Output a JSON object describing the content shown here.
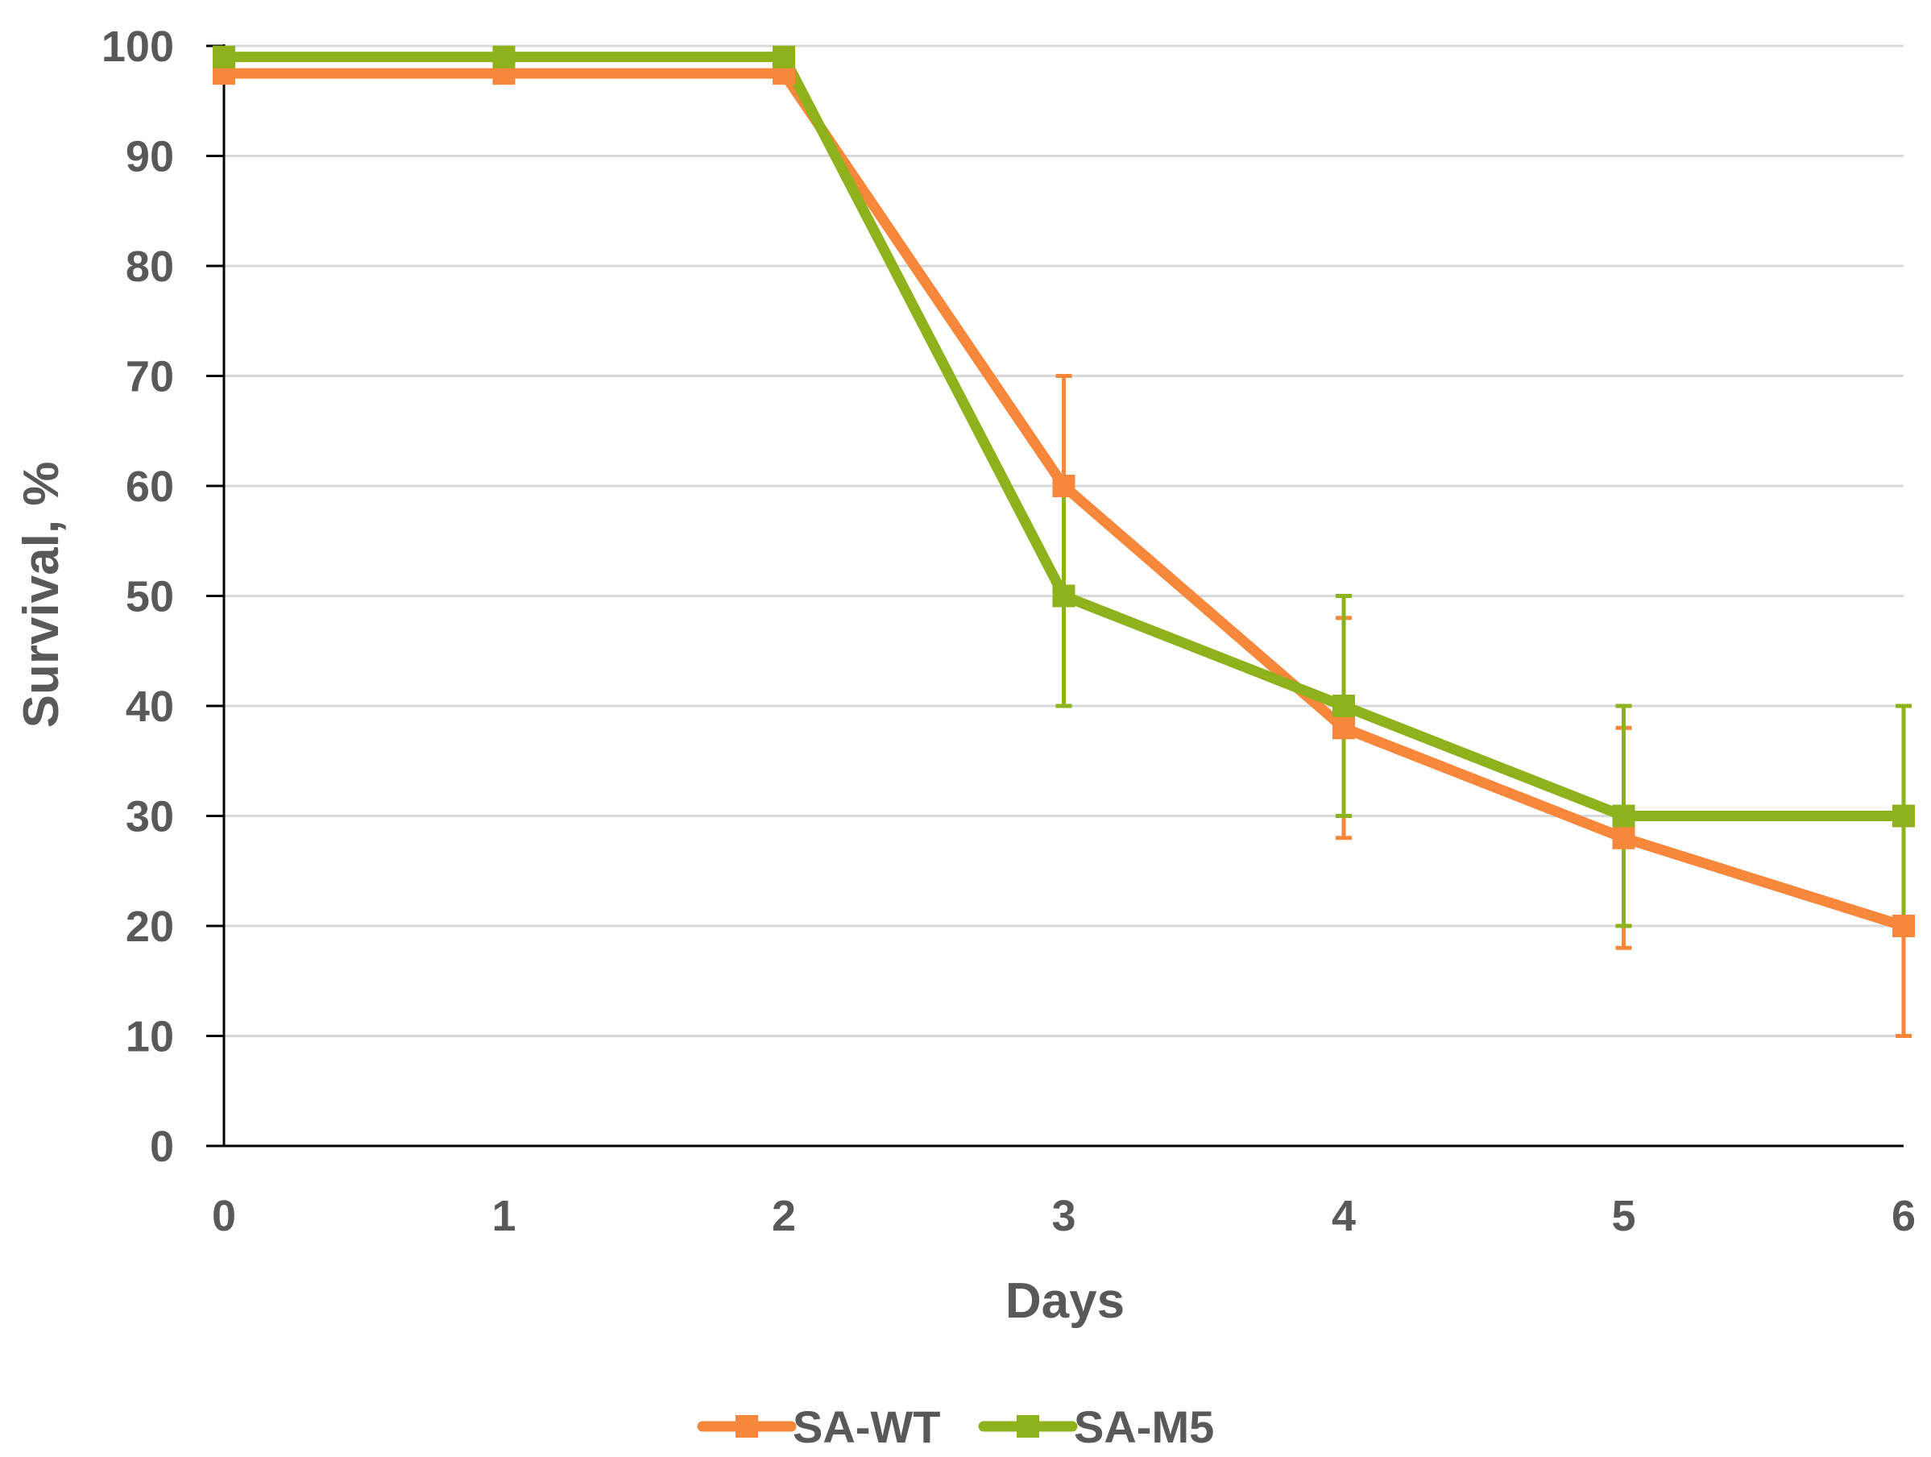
{
  "chart_data": {
    "type": "line",
    "x": [
      0,
      1,
      2,
      3,
      4,
      5,
      6
    ],
    "xlabel": "Days",
    "ylabel": "Survival, %",
    "xlim": [
      0,
      6
    ],
    "ylim": [
      0,
      100
    ],
    "y_ticks": [
      0,
      10,
      20,
      30,
      40,
      50,
      60,
      70,
      80,
      90,
      100
    ],
    "grid": true,
    "legend_position": "bottom-center",
    "series": [
      {
        "name": "SA-WT",
        "color": "#f7873b",
        "values": [
          97.5,
          97.5,
          97.5,
          60,
          38,
          28,
          20
        ],
        "error": [
          0,
          0,
          0,
          10,
          10,
          10,
          10
        ]
      },
      {
        "name": "SA-M5",
        "color": "#8db21c",
        "values": [
          99,
          99,
          99,
          50,
          40,
          30,
          30
        ],
        "error": [
          0,
          0,
          0,
          10,
          10,
          10,
          10
        ]
      }
    ]
  }
}
